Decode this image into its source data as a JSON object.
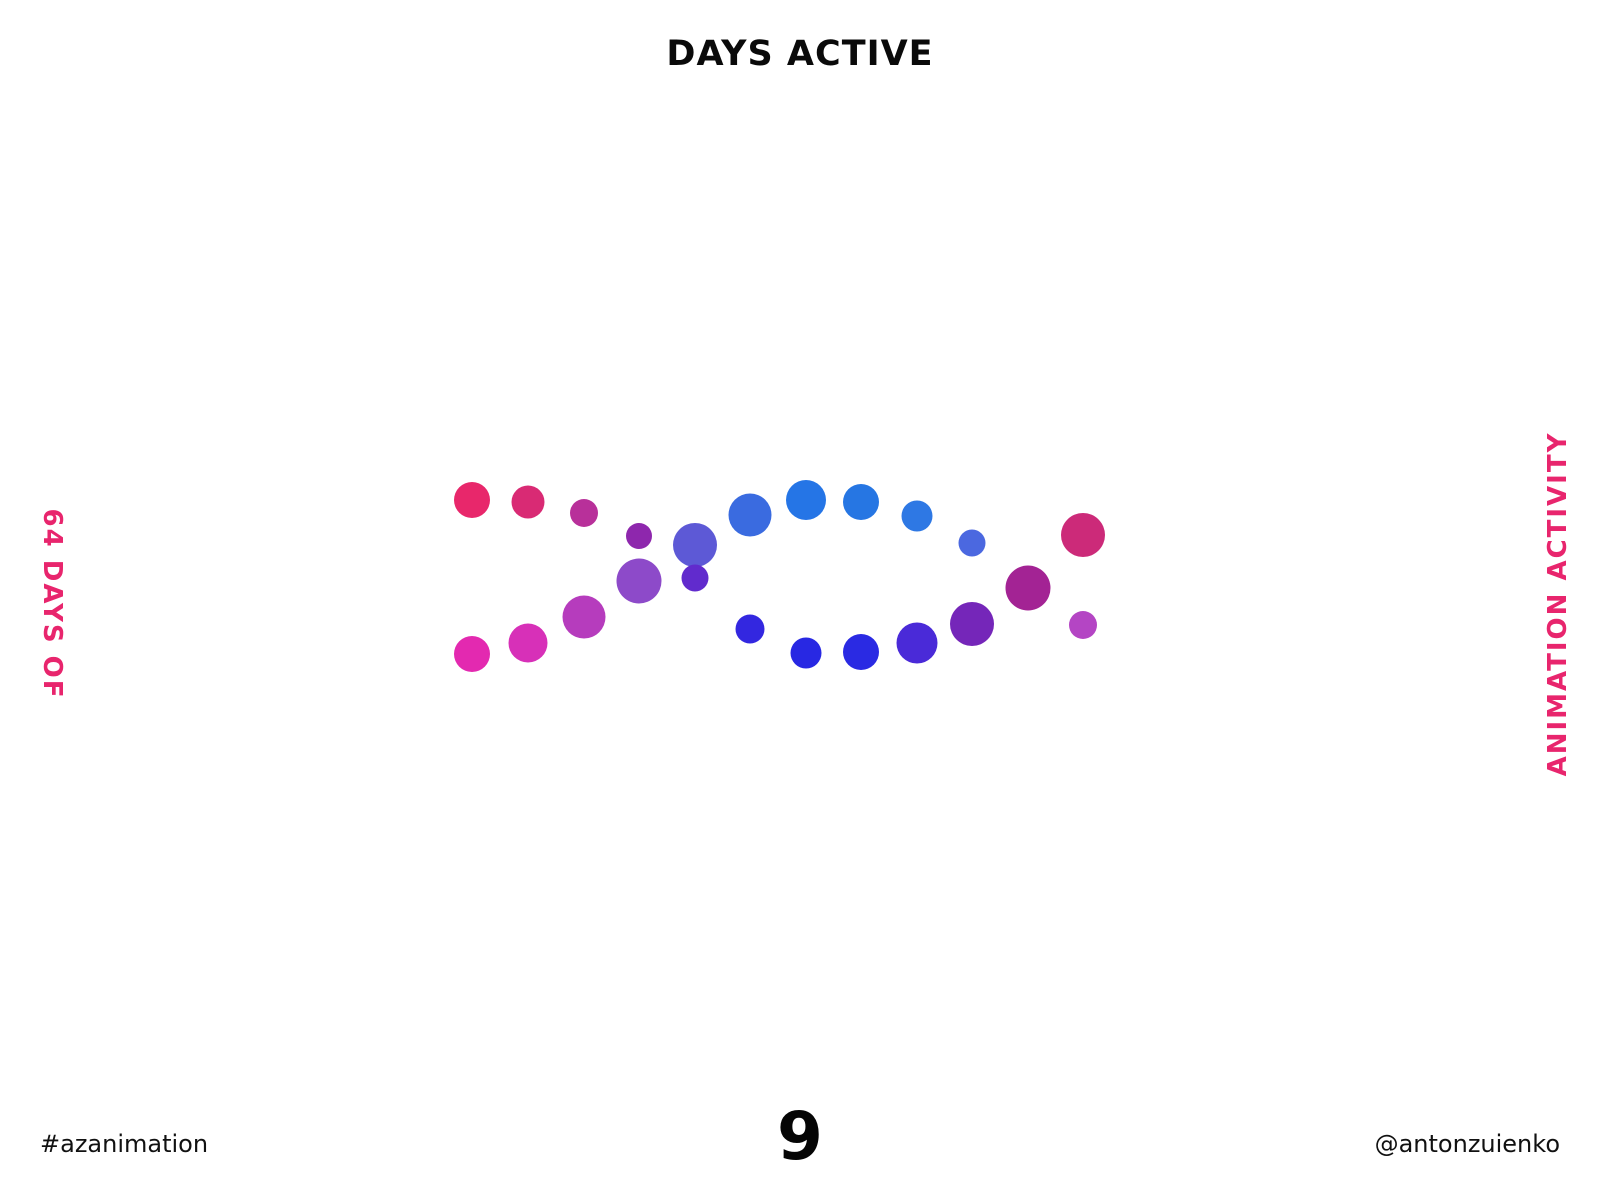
{
  "title": "DAYS ACTIVE",
  "side_left": "64 DAYS OF",
  "side_right": "ANIMATION ACTIVITY",
  "hashtag": "#azanimation",
  "handle": "@antonzuienko",
  "frame_number": "9",
  "accent_color": "#e8256d",
  "dots": {
    "top_strand_colors": [
      "#e8276b",
      "#d92a74",
      "#b8309a",
      "#8e27ad",
      "#5d59d6",
      "#3a6be0",
      "#2575e6",
      "#2676e3",
      "#2e78e4",
      "#4b68e0",
      "#cc2a79"
    ],
    "bottom_strand_colors": [
      "#e329b0",
      "#d730b8",
      "#b63cbd",
      "#8d4ac9",
      "#612bcd",
      "#3327e0",
      "#2828e3",
      "#2a2ae3",
      "#4a2ad8",
      "#7526b9",
      "#a32394",
      "#b445c4"
    ]
  }
}
